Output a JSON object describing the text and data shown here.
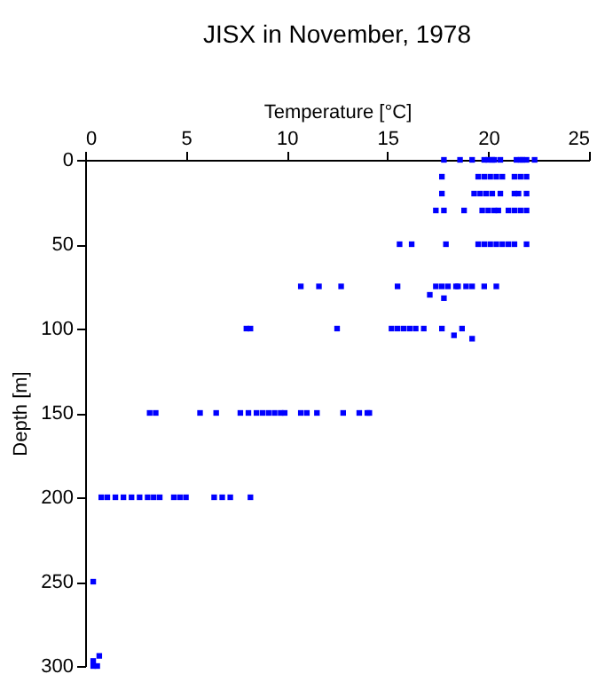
{
  "chart_data": {
    "type": "scatter",
    "title": "JISX in November, 1978",
    "xlabel": "Temperature [°C]",
    "ylabel": "Depth [m]",
    "xlim": [
      0,
      25
    ],
    "xticks": [
      0,
      5,
      10,
      15,
      20,
      25
    ],
    "ylim": [
      300,
      0
    ],
    "yticks": [
      0,
      50,
      100,
      150,
      200,
      250,
      300
    ],
    "marker": "square",
    "series": [
      {
        "color": "#0000ff",
        "x": [
          17.8,
          18.6,
          19.2,
          19.8,
          20.0,
          20.2,
          20.3,
          20.6,
          21.4,
          21.6,
          21.7,
          21.9,
          22.3,
          17.7,
          19.5,
          19.8,
          20.1,
          20.4,
          20.7,
          21.3,
          21.6,
          21.9,
          17.7,
          19.3,
          19.6,
          19.9,
          20.2,
          20.6,
          21.3,
          21.5,
          21.9,
          17.4,
          17.8,
          18.8,
          19.7,
          20.0,
          20.3,
          20.5,
          21.0,
          21.3,
          21.6,
          21.9,
          15.6,
          16.2,
          17.9,
          19.5,
          19.8,
          20.1,
          20.4,
          20.7,
          21.0,
          21.3,
          21.9,
          10.7,
          11.6,
          12.7,
          15.5,
          17.4,
          17.7,
          18.0,
          18.4,
          18.5,
          18.9,
          19.2,
          19.8,
          20.4,
          17.1,
          17.8,
          8.0,
          8.2,
          12.5,
          15.2,
          15.5,
          15.8,
          16.1,
          16.4,
          16.8,
          17.7,
          18.7,
          18.3,
          19.2,
          3.2,
          3.5,
          5.7,
          6.5,
          7.7,
          8.1,
          8.5,
          8.8,
          9.1,
          9.4,
          9.7,
          9.9,
          10.7,
          11.0,
          11.5,
          12.8,
          13.6,
          14.0,
          14.1,
          0.8,
          1.1,
          1.5,
          1.9,
          2.3,
          2.7,
          3.1,
          3.4,
          3.7,
          4.4,
          4.7,
          5.0,
          6.4,
          6.8,
          7.2,
          8.2,
          0.4,
          0.7,
          0.4,
          0.4,
          0.6
        ],
        "values": [
          0,
          0,
          0,
          0,
          0,
          0,
          0,
          0,
          0,
          0,
          0,
          0,
          0,
          10,
          10,
          10,
          10,
          10,
          10,
          10,
          10,
          10,
          20,
          20,
          20,
          20,
          20,
          20,
          20,
          20,
          20,
          30,
          30,
          30,
          30,
          30,
          30,
          30,
          30,
          30,
          30,
          30,
          50,
          50,
          50,
          50,
          50,
          50,
          50,
          50,
          50,
          50,
          50,
          75,
          75,
          75,
          75,
          75,
          75,
          75,
          75,
          75,
          75,
          75,
          75,
          75,
          80,
          82,
          100,
          100,
          100,
          100,
          100,
          100,
          100,
          100,
          100,
          100,
          100,
          104,
          106,
          150,
          150,
          150,
          150,
          150,
          150,
          150,
          150,
          150,
          150,
          150,
          150,
          150,
          150,
          150,
          150,
          150,
          150,
          150,
          200,
          200,
          200,
          200,
          200,
          200,
          200,
          200,
          200,
          200,
          200,
          200,
          200,
          200,
          200,
          200,
          250,
          294,
          297,
          300,
          300
        ]
      }
    ]
  }
}
